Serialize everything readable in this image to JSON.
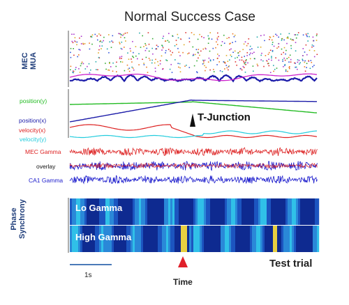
{
  "title": "Normal Success Case",
  "mua_label_line1": "MEC",
  "mua_label_line2": "MUA",
  "signals": {
    "position_y": {
      "label": "position(y)",
      "color": "#22bb22"
    },
    "position_x": {
      "label": "position(x)",
      "color": "#1a1aa8"
    },
    "velocity_x": {
      "label": "velocity(x)",
      "color": "#dd2222"
    },
    "velocity_y": {
      "label": "velocity(y)",
      "color": "#22ccdd"
    },
    "mec_gamma": {
      "label": "MEC Gamma",
      "color": "#dd2222"
    },
    "overlay": {
      "label": "overlay",
      "color": "#111111"
    },
    "ca1_gamma": {
      "label": "CA1 Gamma",
      "color": "#1a1acc"
    }
  },
  "t_junction_label": "T-Junction",
  "phase_label_line1": "Phase",
  "phase_label_line2": "Synchrony",
  "lo_gamma_label": "Lo Gamma",
  "high_gamma_label": "High Gamma",
  "scale_bar_label": "1s",
  "time_label": "Time",
  "test_trial_label": "Test trial"
}
